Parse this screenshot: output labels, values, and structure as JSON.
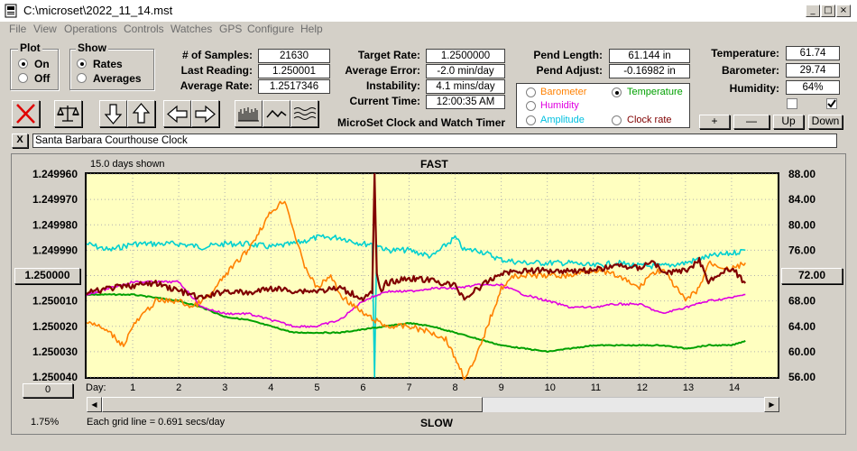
{
  "window": {
    "title": "C:\\microset\\2022_11_14.mst",
    "min": "_",
    "max": "□",
    "close": "×"
  },
  "menu": [
    "File",
    "View",
    "Operations",
    "Controls",
    "Watches",
    "GPS",
    "Configure",
    "Help"
  ],
  "plot_group": {
    "title": "Plot",
    "on": "On",
    "off": "Off",
    "selected": "On"
  },
  "show_group": {
    "title": "Show",
    "rates": "Rates",
    "averages": "Averages",
    "selected": "Rates"
  },
  "stats": {
    "samples_label": "# of Samples:",
    "samples": "21630",
    "last_label": "Last Reading:",
    "last": "1.250001",
    "avg_label": "Average Rate:",
    "avg": "1.2517346",
    "target_label": "Target Rate:",
    "target": "1.2500000",
    "err_label": "Average Error:",
    "err": "-2.0 min/day",
    "inst_label": "Instability:",
    "inst": "4.1 mins/day",
    "time_label": "Current Time:",
    "time": "12:00:35 AM",
    "pend_len_label": "Pend Length:",
    "pend_len": "61.144 in",
    "pend_adj_label": "Pend Adjust:",
    "pend_adj": "-0.16982 in",
    "temp_label": "Temperature:",
    "temp": "61.74",
    "baro_label": "Barometer:",
    "baro": "29.74",
    "hum_label": "Humidity:",
    "hum": "64%"
  },
  "app_name": "MicroSet Clock and Watch Timer",
  "sensors": {
    "barometer": "Barometer",
    "temperature": "Temperature",
    "humidity": "Humidity",
    "amplitude": "Amplitude",
    "clock_rate": "Clock rate",
    "selected": "Temperature"
  },
  "colors": {
    "barometer": "#ff8000",
    "temperature": "#00a000",
    "humidity": "#e000e0",
    "amplitude": "#00d0d0",
    "clock_rate": "#800000",
    "plot_bg": "#ffffc0"
  },
  "buttons": {
    "plus": "+",
    "minus": "—",
    "up": "Up",
    "down": "Down"
  },
  "checkboxes": [
    false,
    true
  ],
  "watch_name": "Santa Barbara Courthouse Clock",
  "close_x": "X",
  "chart_header": {
    "days_shown": "15.0 days shown",
    "fast": "FAST",
    "slow": "SLOW",
    "grid_note": "Each grid line = 0.691 secs/day",
    "pct": "1.75%",
    "day_label": "Day:",
    "left_btn": "1.250000",
    "left_btn2": "0",
    "right_btn": "72.00"
  },
  "chart_data": {
    "type": "line",
    "x_label": "Day:",
    "x_ticks": [
      "1",
      "2",
      "3",
      "4",
      "5",
      "6",
      "7",
      "8",
      "9",
      "10",
      "11",
      "12",
      "13",
      "14"
    ],
    "y_left_ticks": [
      "1.249960",
      "1.249970",
      "1.249980",
      "1.249990",
      "1.250000",
      "1.250010",
      "1.250020",
      "1.250030",
      "1.250040"
    ],
    "y_right_ticks": [
      "88.00",
      "84.00",
      "80.00",
      "76.00",
      "72.00",
      "68.00",
      "64.00",
      "60.00",
      "56.00"
    ],
    "xlim": [
      0,
      15
    ],
    "ylim_left": [
      1.24996,
      1.25004
    ],
    "ylim_right": [
      56,
      88
    ],
    "series": [
      {
        "name": "Amplitude",
        "color": "#00d0d0",
        "axis": "right",
        "x": [
          0,
          0.5,
          1,
          1.5,
          2,
          2.5,
          3,
          3.5,
          4,
          4.5,
          5,
          5.5,
          6,
          6.2,
          6.25,
          6.3,
          6.5,
          7,
          7.5,
          8,
          8.2,
          8.5,
          9,
          9.5,
          10,
          10.5,
          11,
          11.5,
          12,
          12.5,
          13,
          13.5,
          14,
          14.3
        ],
        "values": [
          77,
          76,
          77,
          77,
          77,
          76.5,
          77,
          77,
          76.5,
          77,
          78,
          78,
          77,
          77,
          56,
          77,
          76,
          76,
          75,
          78,
          76,
          76,
          74.5,
          74,
          74,
          74,
          73.5,
          74,
          73.5,
          73.5,
          74,
          75,
          75.5,
          76
        ]
      },
      {
        "name": "Clock rate",
        "color": "#800000",
        "axis": "left",
        "x": [
          0,
          0.5,
          1,
          1.5,
          2,
          2.5,
          3,
          3.5,
          4,
          4.5,
          5,
          5.5,
          6,
          6.2,
          6.25,
          6.3,
          6.4,
          6.5,
          7,
          7.5,
          8,
          8.2,
          8.5,
          9,
          9.5,
          10,
          10.5,
          11,
          11.5,
          12,
          12.3,
          12.5,
          13,
          13.3,
          13.5,
          14,
          14.3
        ],
        "values": [
          1.250007,
          1.250005,
          1.250004,
          1.250003,
          1.250006,
          1.250009,
          1.250006,
          1.250007,
          1.250005,
          1.250006,
          1.250006,
          1.250005,
          1.250009,
          1.250007,
          1.24996,
          1.25,
          1.250007,
          1.250003,
          1.250001,
          1.250002,
          1.250004,
          1.250009,
          1.250005,
          1.249999,
          1.249998,
          1.249998,
          1.249998,
          1.249998,
          1.249996,
          1.249997,
          1.249994,
          1.249999,
          1.249998,
          1.249994,
          1.250002,
          1.249997,
          1.250003
        ]
      },
      {
        "name": "Temperature",
        "color": "#00a000",
        "axis": "right",
        "x": [
          0,
          1,
          2,
          2.5,
          3,
          3.5,
          4,
          4.5,
          5,
          5.5,
          6,
          6.5,
          7,
          7.5,
          8,
          8.5,
          9,
          9.5,
          10,
          10.5,
          11,
          11.5,
          12,
          12.5,
          13,
          13.5,
          14,
          14.3
        ],
        "values": [
          69,
          69,
          68,
          67,
          65.5,
          65,
          64,
          63,
          63,
          63,
          63.5,
          64,
          64.5,
          64,
          63,
          62,
          61,
          60.5,
          60,
          60.5,
          61,
          61,
          61,
          61,
          60.5,
          61,
          61,
          61.7
        ]
      },
      {
        "name": "Humidity",
        "color": "#e000e0",
        "axis": "right",
        "x": [
          0,
          0.5,
          1,
          1.5,
          2,
          2.5,
          3,
          3.5,
          4,
          4.5,
          5,
          5.5,
          6,
          6.5,
          7,
          7.5,
          8,
          8.5,
          9,
          9.5,
          10,
          10.5,
          11,
          11.5,
          12,
          12.5,
          13,
          13.5,
          14,
          14.3
        ],
        "values": [
          69,
          70,
          71,
          71,
          71,
          67,
          66,
          66,
          65,
          64,
          64,
          65,
          68,
          69.5,
          69.5,
          70,
          70,
          70.5,
          70.5,
          69,
          68,
          67,
          67,
          67.5,
          67.5,
          66,
          67,
          68,
          68.5,
          69
        ]
      },
      {
        "name": "Barometer",
        "color": "#ff8000",
        "axis": "right",
        "x": [
          0,
          0.5,
          0.8,
          1,
          1.5,
          2,
          2.3,
          2.7,
          3,
          3.5,
          4,
          4.3,
          4.5,
          4.7,
          5,
          5.3,
          5.5,
          6,
          6.5,
          7,
          7.5,
          7.8,
          8,
          8.2,
          8.4,
          8.6,
          9,
          9.3,
          9.5,
          10,
          10.5,
          11,
          11.5,
          12,
          12.2,
          12.5,
          13,
          13.3,
          13.5,
          14,
          14.3
        ],
        "values": [
          65,
          63,
          61,
          64,
          68,
          68,
          67,
          69,
          72,
          76,
          82,
          84,
          79,
          74,
          70,
          72,
          69,
          66,
          64,
          64,
          63,
          62,
          59,
          56,
          58,
          62,
          70,
          72,
          72,
          72,
          72,
          73,
          72,
          70,
          72,
          73,
          68,
          70,
          74,
          73,
          74
        ]
      }
    ]
  }
}
